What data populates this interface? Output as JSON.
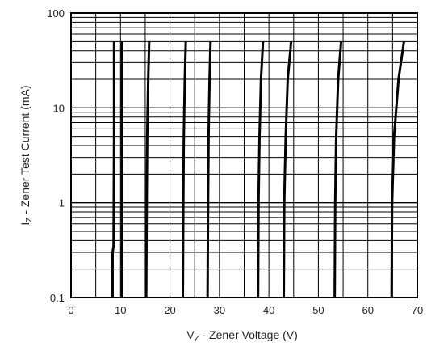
{
  "chart_data": {
    "type": "line",
    "title": "",
    "xlabel": {
      "main": "V",
      "sub": "Z",
      "rest": " - Zener Voltage (V)"
    },
    "ylabel": {
      "main": "I",
      "sub": "Z",
      "rest": " - Zener Test Current (mA)"
    },
    "xlim": [
      0,
      70
    ],
    "ylim": [
      0.1,
      100
    ],
    "yscale": "log",
    "grid": true,
    "x_ticks": [
      "0",
      "10",
      "20",
      "30",
      "40",
      "50",
      "60",
      "70"
    ],
    "y_ticks": [
      "0.1",
      "1",
      "10",
      "100"
    ],
    "line_color": "#000000",
    "series": [
      {
        "x": [
          8.4,
          8.4,
          8.6,
          8.7,
          8.7
        ],
        "y": [
          0.1,
          0.3,
          0.35,
          5,
          50
        ]
      },
      {
        "x": [
          10.3,
          10.3,
          10.3
        ],
        "y": [
          0.1,
          5,
          50
        ]
      },
      {
        "x": [
          15.2,
          15.3,
          15.4,
          15.6,
          15.8
        ],
        "y": [
          0.1,
          1,
          5,
          20,
          50
        ]
      },
      {
        "x": [
          22.6,
          22.7,
          22.8,
          23.0,
          23.2
        ],
        "y": [
          0.1,
          1,
          5,
          20,
          50
        ]
      },
      {
        "x": [
          27.6,
          27.7,
          27.8,
          28.0,
          28.2
        ],
        "y": [
          0.1,
          1,
          5,
          20,
          50
        ]
      },
      {
        "x": [
          37.8,
          37.9,
          38.1,
          38.4,
          38.8
        ],
        "y": [
          0.1,
          1,
          5,
          20,
          50
        ]
      },
      {
        "x": [
          43.0,
          43.1,
          43.4,
          43.8,
          44.5
        ],
        "y": [
          0.1,
          1,
          5,
          20,
          50
        ]
      },
      {
        "x": [
          53.3,
          53.4,
          53.6,
          54.0,
          54.6
        ],
        "y": [
          0.1,
          1,
          5,
          20,
          50
        ]
      },
      {
        "x": [
          64.8,
          64.9,
          65.3,
          66.2,
          67.3
        ],
        "y": [
          0.1,
          1,
          5,
          20,
          50
        ]
      }
    ]
  }
}
